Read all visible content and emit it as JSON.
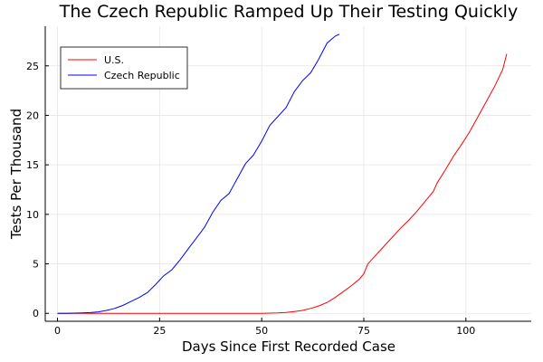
{
  "chart_data": {
    "type": "line",
    "title": "The Czech Republic Ramped Up Their Testing Quickly",
    "xlabel": "Days Since First Recorded Case",
    "ylabel": "Tests Per Thousand",
    "xlim": [
      -3,
      116
    ],
    "ylim": [
      -0.8,
      29
    ],
    "xticks": [
      0,
      25,
      50,
      75,
      100
    ],
    "yticks": [
      0,
      5,
      10,
      15,
      20,
      25
    ],
    "grid": true,
    "legend_position": "top-left",
    "series": [
      {
        "name": "U.S.",
        "color": "#ff0000",
        "x": [
          0,
          10,
          20,
          30,
          40,
          45,
          50,
          52,
          54,
          56,
          58,
          60,
          62,
          64,
          66,
          68,
          70,
          72,
          74,
          75,
          76,
          78,
          80,
          82,
          84,
          86,
          88,
          90,
          92,
          93,
          95,
          97,
          99,
          101,
          103,
          105,
          107,
          109,
          110
        ],
        "y": [
          0,
          0,
          0,
          0,
          0,
          0,
          0,
          0.02,
          0.05,
          0.1,
          0.18,
          0.3,
          0.5,
          0.75,
          1.1,
          1.6,
          2.2,
          2.8,
          3.5,
          4.0,
          5.0,
          5.9,
          6.8,
          7.7,
          8.6,
          9.4,
          10.3,
          11.3,
          12.3,
          13.2,
          14.5,
          15.9,
          17.1,
          18.4,
          19.9,
          21.4,
          22.9,
          24.6,
          26.2
        ]
      },
      {
        "name": "Czech Republic",
        "color": "#0000ff",
        "x": [
          0,
          2,
          4,
          6,
          8,
          10,
          12,
          14,
          16,
          18,
          20,
          22,
          24,
          26,
          28,
          30,
          32,
          34,
          36,
          38,
          40,
          42,
          44,
          46,
          48,
          50,
          52,
          54,
          56,
          58,
          60,
          62,
          64,
          66,
          68,
          69
        ],
        "y": [
          0,
          0,
          0.02,
          0.05,
          0.08,
          0.15,
          0.3,
          0.5,
          0.8,
          1.2,
          1.6,
          2.1,
          2.9,
          3.8,
          4.4,
          5.4,
          6.5,
          7.6,
          8.7,
          10.2,
          11.4,
          12.1,
          13.6,
          15.1,
          16.0,
          17.4,
          19.0,
          19.9,
          20.8,
          22.4,
          23.5,
          24.3,
          25.7,
          27.3,
          28.0,
          28.2
        ]
      }
    ]
  }
}
